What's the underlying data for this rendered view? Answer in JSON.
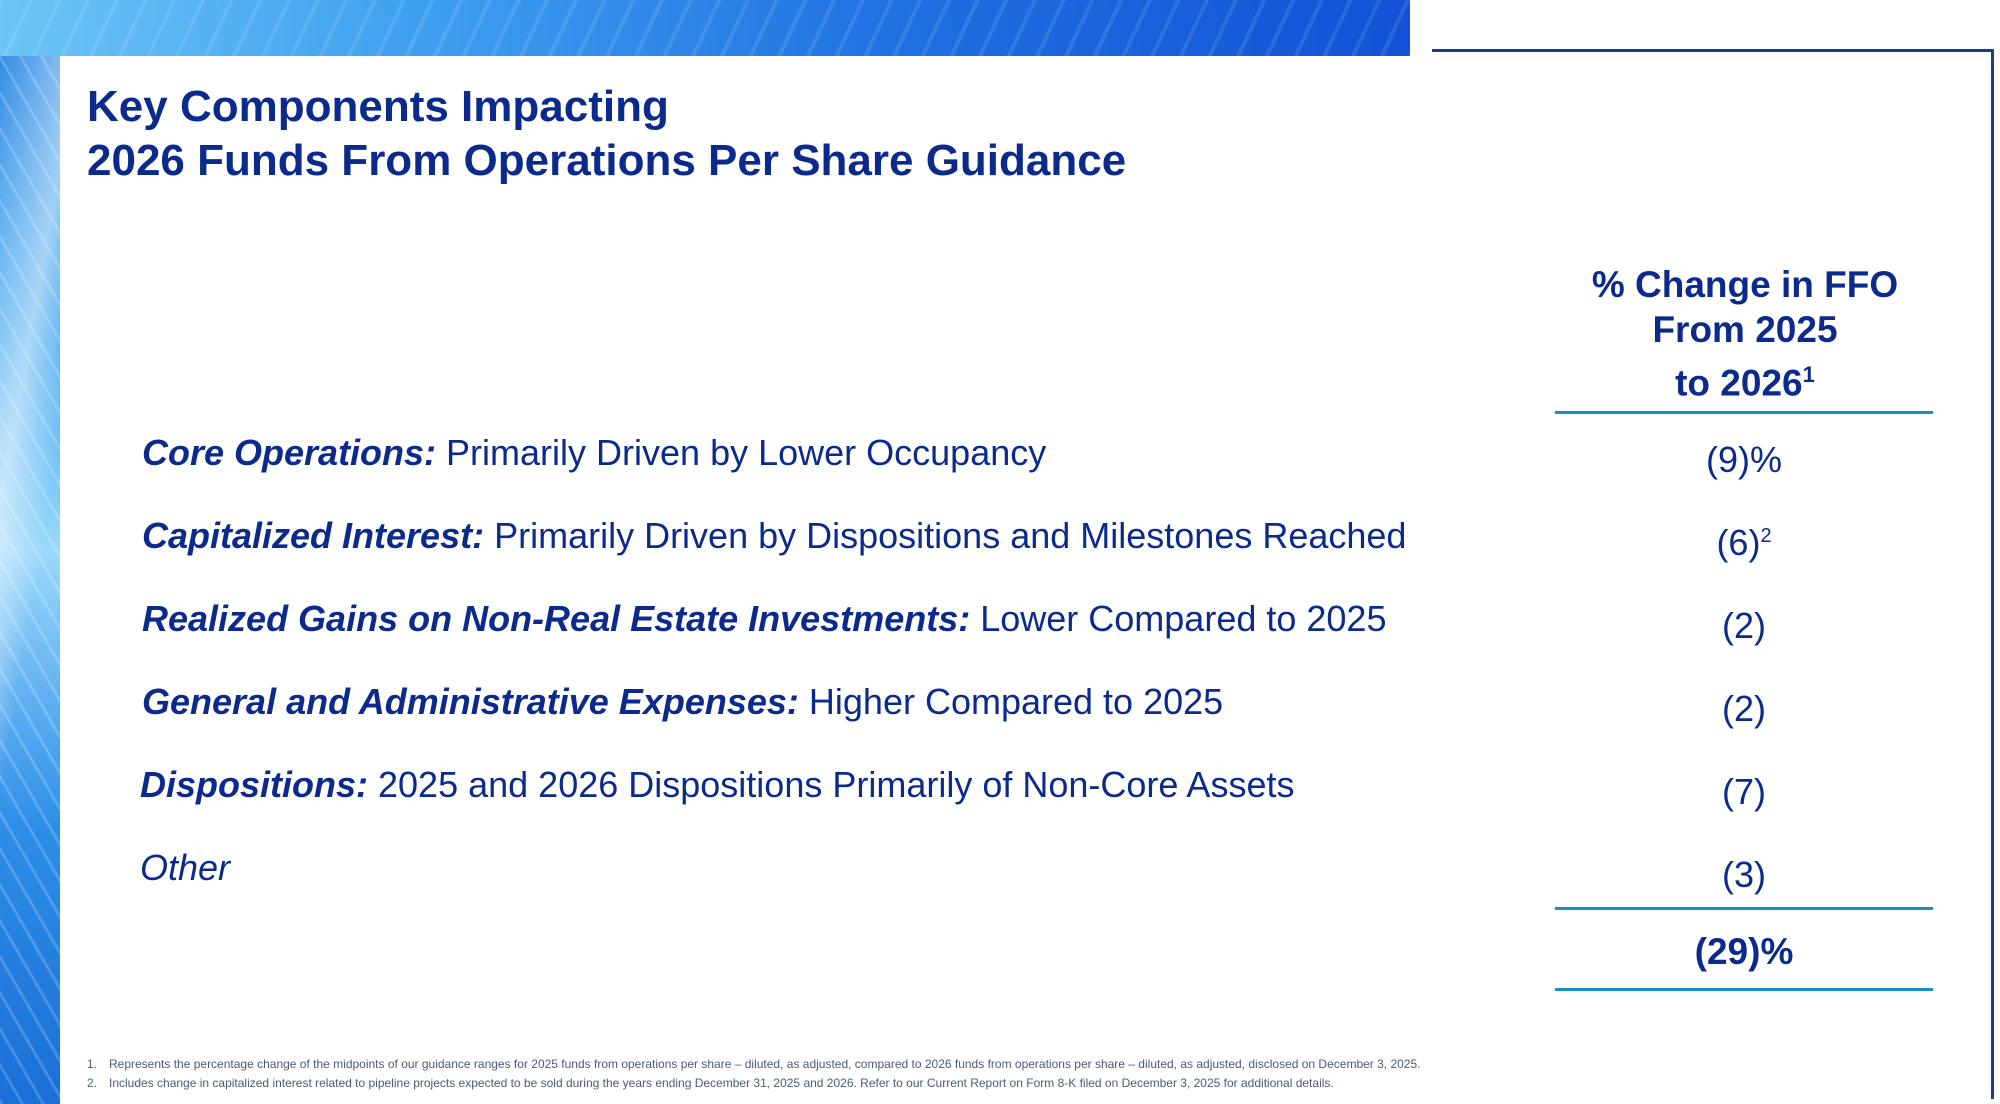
{
  "title": {
    "line1": "Key Components Impacting",
    "line2": "2026 Funds From Operations Per Share Guidance"
  },
  "column_header": {
    "line1": "% Change in FFO",
    "line2": "From 2025",
    "line3": "to 2026",
    "footnote_ref": "1"
  },
  "rows": [
    {
      "label_bold": "Core Operations:",
      "label_rest": " Primarily Driven by Lower Occupancy",
      "value": "(9)%",
      "value_sup": ""
    },
    {
      "label_bold": "Capitalized Interest:",
      "label_rest": " Primarily Driven by Dispositions and Milestones Reached",
      "value": "(6)",
      "value_sup": "2"
    },
    {
      "label_bold": "Realized Gains on Non-Real Estate Investments:",
      "label_rest": " Lower Compared to 2025",
      "value": "(2)",
      "value_sup": ""
    },
    {
      "label_bold": "General and Administrative Expenses:",
      "label_rest": " Higher Compared to 2025",
      "value": "(2)",
      "value_sup": ""
    },
    {
      "label_bold": "Dispositions:",
      "label_rest": " 2025 and 2026 Dispositions Primarily of Non-Core Assets",
      "value": "(7)",
      "value_sup": ""
    },
    {
      "label_bold": "Other",
      "label_rest": "",
      "value": "(3)",
      "value_sup": ""
    }
  ],
  "total": "(29)%",
  "footnotes": [
    {
      "num": "1.",
      "text": "Represents the percentage change of the midpoints of our guidance ranges for 2025 funds from operations per share – diluted, as adjusted, compared to 2026 funds from operations per share – diluted, as adjusted, disclosed on December 3, 2025."
    },
    {
      "num": "2.",
      "text": "Includes change in capitalized interest related to pipeline projects expected to be sold during the years ending December 31, 2025 and 2026. Refer to our Current Report on Form 8-K filed on December 3, 2025 for additional details."
    }
  ],
  "colors": {
    "text_primary": "#0b2a8c",
    "rule": "#1b8ec9",
    "frame": "#1a3c8f"
  }
}
